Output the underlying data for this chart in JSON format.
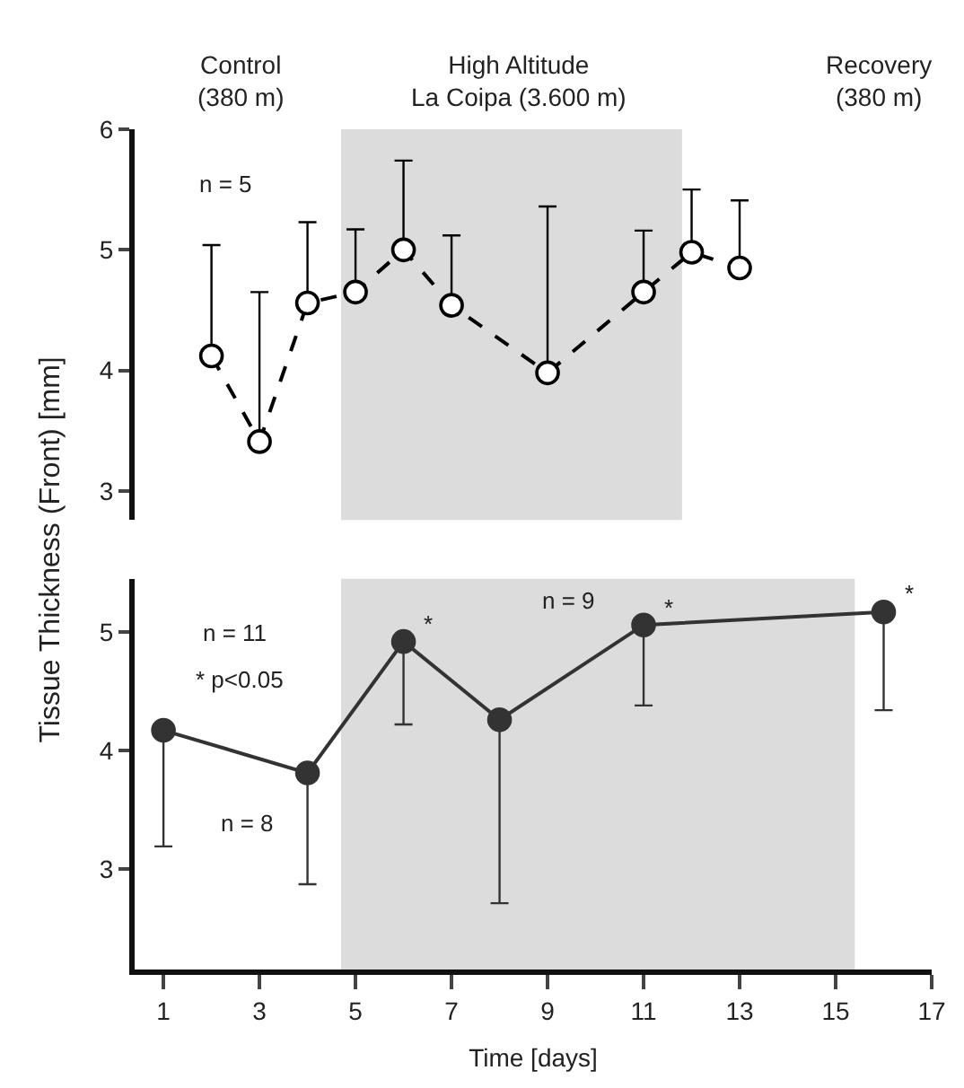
{
  "chart_data": [
    {
      "type": "line",
      "ylabel": "Tissue Thickness (Front) [mm]",
      "xlim": [
        0.4,
        17
      ],
      "ylim": [
        2.76,
        6
      ],
      "yticks": [
        3,
        4,
        5,
        6
      ],
      "tick_labels": "y",
      "marker": "circle",
      "line_style": "dashed",
      "annotations": [
        "Control\n(380 m)",
        "High Altitude\nLa Coipa (3.600 m)",
        "Recovery\n(380 m)",
        "n = 5"
      ],
      "bands": [
        {
          "axis": "x",
          "from": 4.7,
          "to": 11.8,
          "color": "#dcdcdc"
        }
      ],
      "series": [
        {
          "color": "#000000",
          "x": [
            2,
            3,
            4,
            5,
            6,
            7,
            9,
            11,
            12,
            13
          ],
          "values": [
            4.12,
            3.41,
            4.56,
            4.65,
            5.0,
            4.54,
            3.98,
            4.65,
            4.98,
            4.85
          ],
          "errors": [
            [
              4.12,
              5.04
            ],
            [
              3.41,
              4.65
            ],
            [
              4.56,
              5.23
            ],
            [
              4.65,
              5.17
            ],
            [
              5.0,
              5.74
            ],
            [
              4.54,
              5.12
            ],
            [
              3.98,
              5.36
            ],
            [
              4.65,
              5.16
            ],
            [
              4.98,
              5.5
            ],
            [
              4.85,
              5.41
            ]
          ]
        }
      ]
    },
    {
      "type": "line",
      "xlabel": "Time [days]",
      "xlim": [
        0.4,
        17
      ],
      "xticks": [
        1,
        3,
        5,
        7,
        9,
        11,
        13,
        15,
        17
      ],
      "ylim": [
        2.15,
        5.45
      ],
      "yticks": [
        3,
        4,
        5
      ],
      "marker": "circle",
      "line_style": "solid",
      "annotations": [
        "n = 11",
        "* p<0.05",
        {
          "text": "n = 8",
          "x": 4,
          "y": 3.81
        },
        {
          "text": "n = 9",
          "x": 11,
          "y": 5.06
        },
        {
          "text": "*",
          "x": 6,
          "y": 4.92
        },
        {
          "text": "*",
          "x": 11,
          "y": 5.06
        },
        {
          "text": "*",
          "x": 16,
          "y": 5.17
        }
      ],
      "bands": [
        {
          "axis": "x",
          "from": 4.7,
          "to": 15.4,
          "color": "#dcdcdc"
        }
      ],
      "series": [
        {
          "color": "#333333",
          "x": [
            1,
            4,
            6,
            8,
            11,
            16
          ],
          "values": [
            4.17,
            3.81,
            4.92,
            4.26,
            5.06,
            5.17
          ],
          "errors": [
            [
              3.19,
              4.17
            ],
            [
              2.87,
              3.81
            ],
            [
              4.22,
              4.92
            ],
            [
              2.71,
              4.26
            ],
            [
              4.38,
              5.06
            ],
            [
              4.34,
              5.17
            ]
          ]
        }
      ]
    }
  ]
}
